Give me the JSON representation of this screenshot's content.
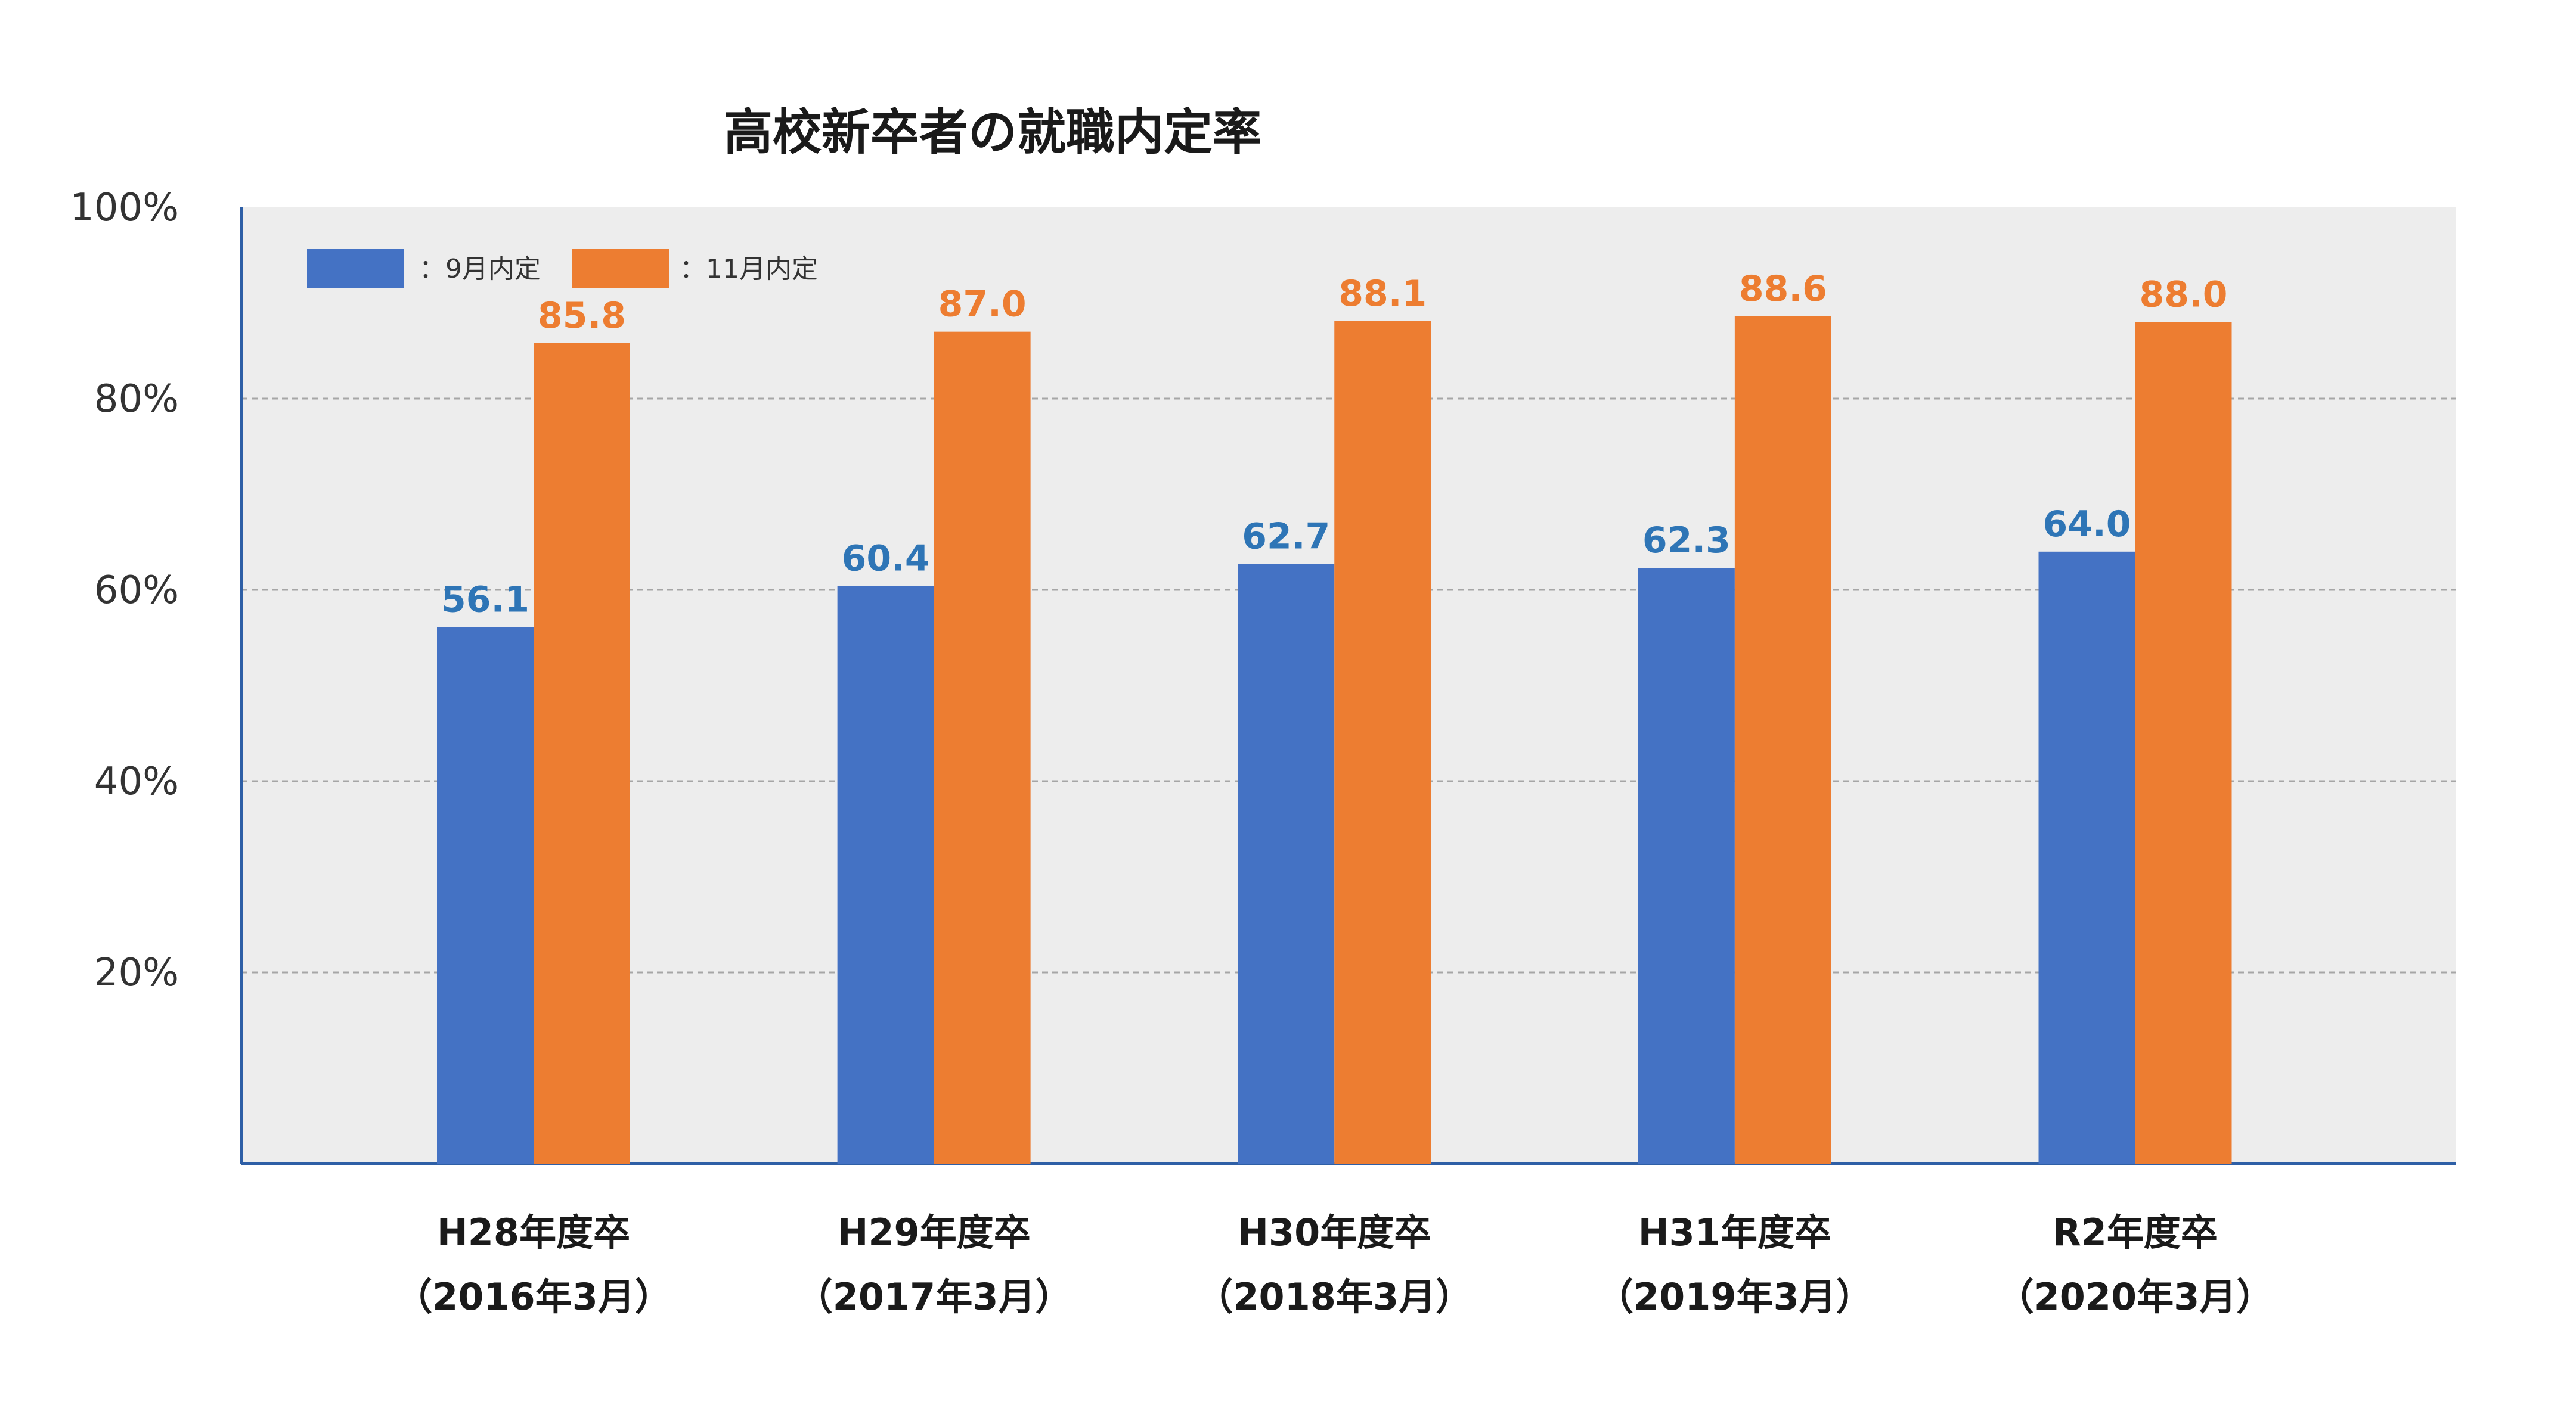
{
  "chart_data": {
    "type": "bar",
    "title": "高校新卒者の就職内定率",
    "categories": [
      [
        "H28年度卒",
        "（2016年3月）"
      ],
      [
        "H29年度卒",
        "（2017年3月）"
      ],
      [
        "H30年度卒",
        "（2018年3月）"
      ],
      [
        "H31年度卒",
        "（2019年3月）"
      ],
      [
        "R2年度卒",
        "（2020年3月）"
      ]
    ],
    "series": [
      {
        "name": "：9月内定",
        "color": "#4472C4",
        "label_color": "#2E75B6",
        "values": [
          56.1,
          60.4,
          62.7,
          62.3,
          64.0
        ],
        "value_labels": [
          "56.1",
          "60.4",
          "62.7",
          "62.3",
          "64.0"
        ]
      },
      {
        "name": "：11月内定",
        "color": "#ED7D31",
        "label_color": "#ED7D31",
        "values": [
          85.8,
          87.0,
          88.1,
          88.6,
          88.0
        ],
        "value_labels": [
          "85.8",
          "87.0",
          "88.1",
          "88.6",
          "88.0"
        ]
      }
    ],
    "y_ticks": [
      {
        "value": 100,
        "label": "100%"
      },
      {
        "value": 80,
        "label": "80%"
      },
      {
        "value": 60,
        "label": "60%"
      },
      {
        "value": 40,
        "label": "40%"
      },
      {
        "value": 20,
        "label": "20%"
      }
    ],
    "ylim": [
      0,
      100
    ],
    "grid": true,
    "legend_position": "top-left",
    "plot_background": "#EDEDED",
    "axis_color": "#2E5FA6",
    "grid_color": "#A6A6A6"
  }
}
